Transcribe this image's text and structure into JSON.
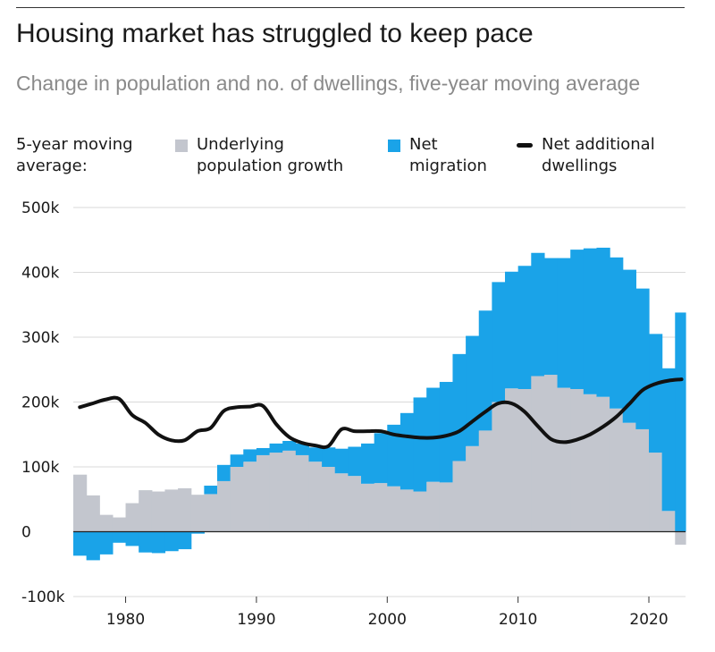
{
  "header": {
    "title": "Housing market has struggled to keep pace",
    "subtitle": "Change in population and no. of dwellings, five-year moving average"
  },
  "legend": {
    "lead": "5-year moving average:",
    "items": [
      {
        "label": "Underlying population growth",
        "color": "#c3c6ce"
      },
      {
        "label": "Net migration",
        "color": "#1aa3e8"
      },
      {
        "label": "Net additional dwellings",
        "color": "#111111"
      }
    ]
  },
  "chart_data": {
    "type": "area",
    "x": [
      1976,
      1977,
      1978,
      1979,
      1980,
      1981,
      1982,
      1983,
      1984,
      1985,
      1986,
      1987,
      1988,
      1989,
      1990,
      1991,
      1992,
      1993,
      1994,
      1995,
      1996,
      1997,
      1998,
      1999,
      2000,
      2001,
      2002,
      2003,
      2004,
      2005,
      2006,
      2007,
      2008,
      2009,
      2010,
      2011,
      2012,
      2013,
      2014,
      2015,
      2016,
      2017,
      2018,
      2019,
      2020,
      2021,
      2022
    ],
    "series": [
      {
        "name": "Underlying population growth",
        "kind": "area",
        "color": "#c3c6ce",
        "values": [
          88,
          56,
          26,
          22,
          44,
          64,
          62,
          65,
          67,
          57,
          58,
          78,
          100,
          108,
          118,
          122,
          125,
          118,
          108,
          100,
          90,
          86,
          74,
          75,
          70,
          65,
          62,
          77,
          76,
          109,
          132,
          156,
          200,
          221,
          220,
          240,
          242,
          222,
          220,
          212,
          208,
          190,
          168,
          158,
          122,
          32,
          -20
        ]
      },
      {
        "name": "Net migration",
        "kind": "area",
        "color": "#1aa3e8",
        "values": [
          -37,
          -44,
          -35,
          -17,
          -22,
          -32,
          -33,
          -30,
          -27,
          -3,
          13,
          25,
          19,
          19,
          11,
          14,
          15,
          18,
          22,
          30,
          38,
          45,
          62,
          77,
          95,
          118,
          145,
          145,
          155,
          165,
          170,
          185,
          185,
          180,
          190,
          190,
          180,
          200,
          215,
          225,
          230,
          233,
          236,
          217,
          183,
          220,
          338
        ]
      },
      {
        "name": "Net additional dwellings",
        "kind": "line",
        "color": "#111111",
        "values": [
          192,
          198,
          204,
          205,
          180,
          168,
          150,
          141,
          141,
          155,
          160,
          186,
          192,
          193,
          194,
          166,
          146,
          137,
          133,
          132,
          158,
          155,
          155,
          155,
          150,
          147,
          145,
          145,
          148,
          155,
          170,
          185,
          198,
          198,
          185,
          163,
          143,
          138,
          142,
          150,
          162,
          177,
          197,
          218,
          228,
          233,
          235
        ]
      }
    ],
    "y_ticks": [
      -100,
      0,
      100,
      200,
      300,
      400,
      500
    ],
    "y_tick_labels": [
      "-100k",
      "0",
      "100k",
      "200k",
      "300k",
      "400k",
      "500k"
    ],
    "x_ticks": [
      1980,
      1990,
      2000,
      2010,
      2020
    ],
    "x_tick_labels": [
      "1980",
      "1990",
      "2000",
      "2010",
      "2020"
    ],
    "ylim": [
      -100,
      500
    ],
    "xlim": [
      1976,
      2022.8
    ],
    "grid": true,
    "legend_position": "top"
  }
}
